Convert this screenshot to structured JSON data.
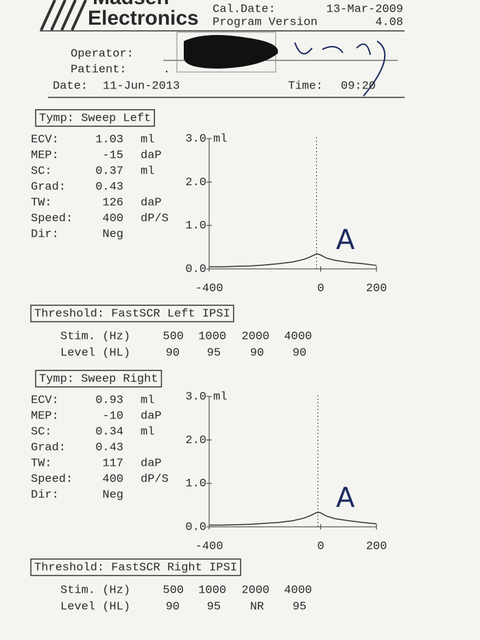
{
  "header": {
    "brand_top": "Madsen",
    "brand": "Electronics",
    "cal_date_label": "Cal.Date:",
    "cal_date": "13-Mar-2009",
    "program_label": "Program Version",
    "program_version": "4.08",
    "operator_label": "Operator:",
    "patient_label": "Patient:",
    "patient": ".",
    "date_label": "Date:",
    "date": "11-Jun-2013",
    "time_label": "Time:",
    "time": "09:20"
  },
  "sections": [
    {
      "title": "Tymp: Sweep Left",
      "params": [
        [
          "ECV:",
          "1.03",
          "ml"
        ],
        [
          "MEP:",
          "-15",
          "daP"
        ],
        [
          "SC:",
          "0.37",
          "ml"
        ],
        [
          "Grad:",
          "0.43",
          null
        ],
        [
          "TW:",
          "126",
          "daP"
        ],
        [
          "Speed:",
          "400",
          "dP/S"
        ],
        [
          "Dir:",
          "Neg",
          null
        ]
      ],
      "chart": {
        "type": "line",
        "y_unit": "ml",
        "annotation": "A",
        "xlim": [
          -400,
          200
        ],
        "xticks": [
          -400,
          0,
          200
        ],
        "ylim": [
          0,
          3
        ],
        "yticks": [
          {
            "value": 0,
            "label": "0.0"
          },
          {
            "value": 1,
            "label": "1.0"
          },
          {
            "value": 2,
            "label": "2.0"
          },
          {
            "value": 3,
            "label": "3.0"
          }
        ],
        "x": [
          -400,
          -350,
          -300,
          -250,
          -200,
          -150,
          -100,
          -60,
          -40,
          -20,
          -15,
          0,
          20,
          50,
          100,
          150,
          200
        ],
        "values": [
          0.05,
          0.05,
          0.06,
          0.07,
          0.09,
          0.12,
          0.16,
          0.22,
          0.27,
          0.33,
          0.35,
          0.32,
          0.25,
          0.2,
          0.15,
          0.12,
          0.08
        ]
      },
      "threshold": {
        "title": "Threshold: FastSCR Left IPSI",
        "stim_label": "Stim. (Hz)",
        "level_label": "Level (HL)",
        "freqs": [
          "500",
          "1000",
          "2000",
          "4000"
        ],
        "levels": [
          "90",
          "95",
          "90",
          "90"
        ]
      }
    },
    {
      "title": "Tymp: Sweep Right",
      "params": [
        [
          "ECV:",
          "0.93",
          "ml"
        ],
        [
          "MEP:",
          "-10",
          "daP"
        ],
        [
          "SC:",
          "0.34",
          "ml"
        ],
        [
          "Grad:",
          "0.43",
          null
        ],
        [
          "TW:",
          "117",
          "daP"
        ],
        [
          "Speed:",
          "400",
          "dP/S"
        ],
        [
          "Dir:",
          "Neg",
          null
        ]
      ],
      "chart": {
        "type": "line",
        "y_unit": "ml",
        "annotation": "A",
        "xlim": [
          -400,
          200
        ],
        "xticks": [
          -400,
          0,
          200
        ],
        "ylim": [
          0,
          3
        ],
        "yticks": [
          {
            "value": 0,
            "label": "0.0"
          },
          {
            "value": 1,
            "label": "1.0"
          },
          {
            "value": 2,
            "label": "2.0"
          },
          {
            "value": 3,
            "label": "3.0"
          }
        ],
        "x": [
          -400,
          -350,
          -300,
          -250,
          -200,
          -150,
          -100,
          -60,
          -40,
          -20,
          -10,
          0,
          20,
          50,
          100,
          150,
          200
        ],
        "values": [
          0.04,
          0.04,
          0.05,
          0.06,
          0.08,
          0.1,
          0.14,
          0.2,
          0.25,
          0.31,
          0.34,
          0.32,
          0.25,
          0.19,
          0.14,
          0.1,
          0.07
        ]
      },
      "threshold": {
        "title": "Threshold: FastSCR Right IPSI",
        "stim_label": "Stim. (Hz)",
        "level_label": "Level (HL)",
        "freqs": [
          "500",
          "1000",
          "2000",
          "4000"
        ],
        "levels": [
          "90",
          "95",
          "NR",
          "95"
        ]
      }
    }
  ]
}
